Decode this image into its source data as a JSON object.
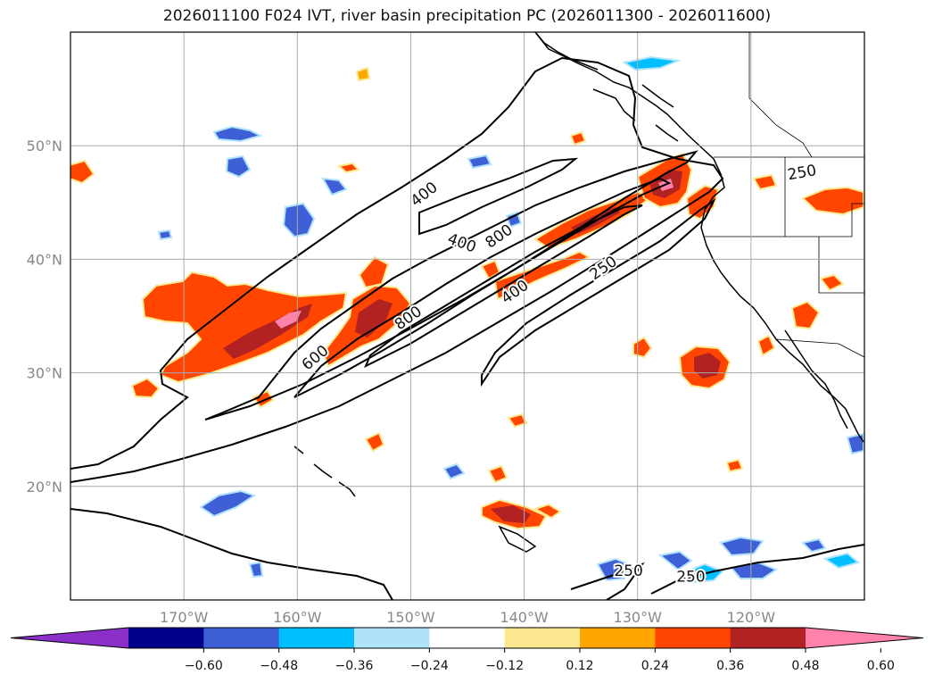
{
  "title": "2026011100 F024 IVT, river basin precipitation PC (2026011300 - 2026011600)",
  "chart_data": {
    "type": "map",
    "lon_range": [
      -180,
      -110
    ],
    "lat_range": [
      10,
      60
    ],
    "lon_ticks": [
      {
        "value": -170,
        "label": "170°W"
      },
      {
        "value": -160,
        "label": "160°W"
      },
      {
        "value": -150,
        "label": "150°W"
      },
      {
        "value": -140,
        "label": "140°W"
      },
      {
        "value": -130,
        "label": "130°W"
      },
      {
        "value": -120,
        "label": "120°W"
      }
    ],
    "lat_ticks": [
      {
        "value": 20,
        "label": "20°N"
      },
      {
        "value": 30,
        "label": "30°N"
      },
      {
        "value": 40,
        "label": "40°N"
      },
      {
        "value": 50,
        "label": "50°N"
      }
    ],
    "grid": true,
    "contour_labels": [
      {
        "text": "400",
        "lon": -148.8,
        "lat": 45.7,
        "angle": -38
      },
      {
        "text": "400",
        "lon": -145.5,
        "lat": 41.4,
        "angle": 20
      },
      {
        "text": "800",
        "lon": -142.2,
        "lat": 42.0,
        "angle": -35
      },
      {
        "text": "250",
        "lon": -115.5,
        "lat": 47.6,
        "angle": -10
      },
      {
        "text": "250",
        "lon": -133.0,
        "lat": 39.2,
        "angle": -35
      },
      {
        "text": "400",
        "lon": -140.8,
        "lat": 37.1,
        "angle": -35
      },
      {
        "text": "800",
        "lon": -150.2,
        "lat": 34.8,
        "angle": -35
      },
      {
        "text": "600",
        "lon": -158.4,
        "lat": 31.3,
        "angle": -40
      },
      {
        "text": "250",
        "lon": -130.8,
        "lat": 12.5,
        "angle": 0
      },
      {
        "text": "250",
        "lon": -125.3,
        "lat": 12.0,
        "angle": 0
      }
    ],
    "colorbar": {
      "colors": [
        "#8b2fc9",
        "#00008b",
        "#3f5fd6",
        "#00bfff",
        "#afe2fb",
        "#ffffff",
        "#fce98f",
        "#ffa500",
        "#ff4500",
        "#b22222",
        "#ff82ab"
      ],
      "tick_labels": [
        "−0.60",
        "−0.48",
        "−0.36",
        "−0.24",
        "−0.12",
        "0.12",
        "0.24",
        "0.36",
        "0.48",
        "0.60"
      ],
      "extend": "both"
    }
  }
}
